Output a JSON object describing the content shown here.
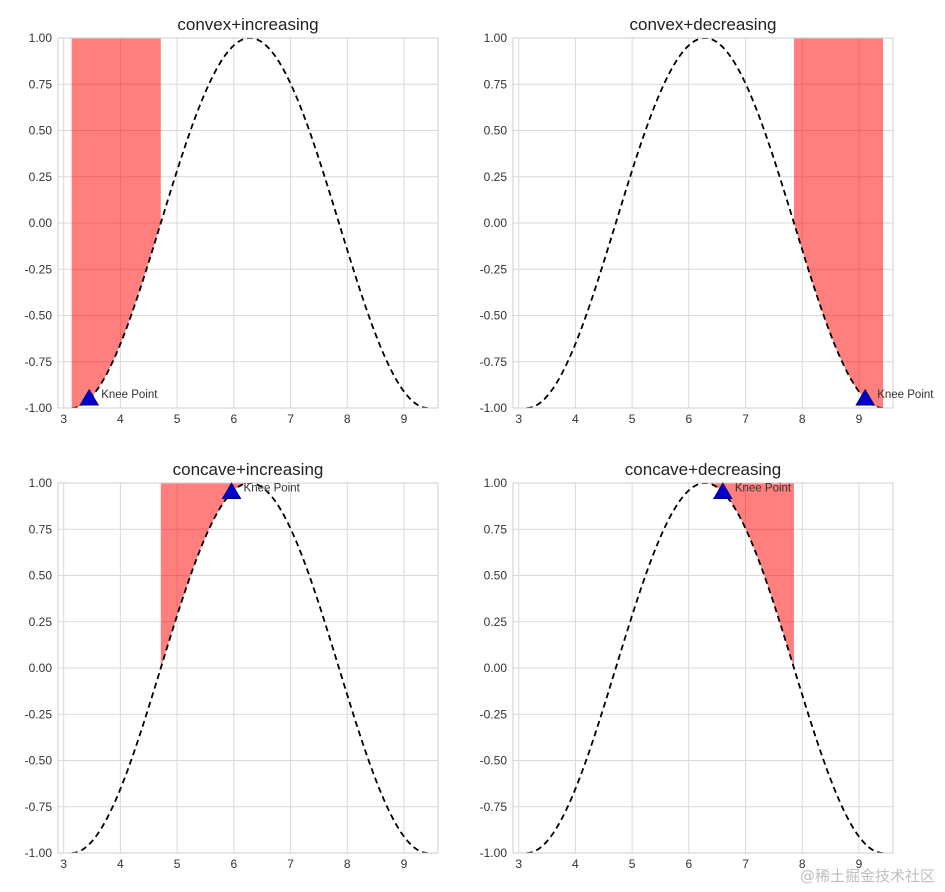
{
  "chart_data": [
    {
      "type": "line",
      "title": "convex+increasing",
      "curve": {
        "function": "cos(x)",
        "x_range": [
          3.1416,
          9.4248
        ],
        "style": "dashed",
        "color": "#000000"
      },
      "xlim": [
        2.9,
        9.6
      ],
      "ylim": [
        -1.0,
        1.0
      ],
      "xticks": [
        3,
        4,
        5,
        6,
        7,
        8,
        9
      ],
      "yticks": [
        1.0,
        0.75,
        0.5,
        0.25,
        0.0,
        -0.25,
        -0.5,
        -0.75,
        -1.0
      ],
      "ytick_labels": [
        "1.00",
        "0.75",
        "0.50",
        "0.25",
        "0.00",
        "-0.25",
        "-0.50",
        "-0.75",
        "-1.00"
      ],
      "shaded_region": {
        "x_range": [
          3.1416,
          4.7124
        ],
        "fill": "above-curve",
        "color": "#ff0000",
        "alpha": 0.5
      },
      "knee_point": {
        "x": 3.45,
        "y": -0.95,
        "label": "Knee Point",
        "label_side": "right"
      },
      "grid": true
    },
    {
      "type": "line",
      "title": "convex+decreasing",
      "curve": {
        "function": "cos(x)",
        "x_range": [
          3.1416,
          9.4248
        ],
        "style": "dashed",
        "color": "#000000"
      },
      "xlim": [
        2.9,
        9.6
      ],
      "ylim": [
        -1.0,
        1.0
      ],
      "xticks": [
        3,
        4,
        5,
        6,
        7,
        8,
        9
      ],
      "yticks": [
        1.0,
        0.75,
        0.5,
        0.25,
        0.0,
        -0.25,
        -0.5,
        -0.75,
        -1.0
      ],
      "ytick_labels": [
        "1.00",
        "0.75",
        "0.50",
        "0.25",
        "0.00",
        "-0.25",
        "-0.50",
        "-0.75",
        "-1.00"
      ],
      "shaded_region": {
        "x_range": [
          7.854,
          9.4248
        ],
        "fill": "above-curve",
        "color": "#ff0000",
        "alpha": 0.5
      },
      "knee_point": {
        "x": 9.11,
        "y": -0.95,
        "label": "Knee Point",
        "label_side": "right"
      },
      "grid": true
    },
    {
      "type": "line",
      "title": "concave+increasing",
      "curve": {
        "function": "cos(x)",
        "x_range": [
          3.1416,
          9.4248
        ],
        "style": "dashed",
        "color": "#000000"
      },
      "xlim": [
        2.9,
        9.6
      ],
      "ylim": [
        -1.0,
        1.0
      ],
      "xticks": [
        3,
        4,
        5,
        6,
        7,
        8,
        9
      ],
      "yticks": [
        1.0,
        0.75,
        0.5,
        0.25,
        0.0,
        -0.25,
        -0.5,
        -0.75,
        -1.0
      ],
      "ytick_labels": [
        "1.00",
        "0.75",
        "0.50",
        "0.25",
        "0.00",
        "-0.25",
        "-0.50",
        "-0.75",
        "-1.00"
      ],
      "shaded_region": {
        "x_range": [
          4.7124,
          6.2832
        ],
        "fill": "above-curve",
        "color": "#ff0000",
        "alpha": 0.5
      },
      "knee_point": {
        "x": 5.96,
        "y": 0.95,
        "label": "Knee Point",
        "label_side": "right"
      },
      "grid": true
    },
    {
      "type": "line",
      "title": "concave+decreasing",
      "curve": {
        "function": "cos(x)",
        "x_range": [
          3.1416,
          9.4248
        ],
        "style": "dashed",
        "color": "#000000"
      },
      "xlim": [
        2.9,
        9.6
      ],
      "ylim": [
        -1.0,
        1.0
      ],
      "xticks": [
        3,
        4,
        5,
        6,
        7,
        8,
        9
      ],
      "yticks": [
        1.0,
        0.75,
        0.5,
        0.25,
        0.0,
        -0.25,
        -0.5,
        -0.75,
        -1.0
      ],
      "ytick_labels": [
        "1.00",
        "0.75",
        "0.50",
        "0.25",
        "0.00",
        "-0.25",
        "-0.50",
        "-0.75",
        "-1.00"
      ],
      "shaded_region": {
        "x_range": [
          6.2832,
          7.854
        ],
        "fill": "above-curve",
        "color": "#ff0000",
        "alpha": 0.5
      },
      "knee_point": {
        "x": 6.6,
        "y": 0.95,
        "label": "Knee Point",
        "label_side": "right"
      },
      "grid": true
    }
  ],
  "watermark": "@稀土掘金技术社区",
  "colors": {
    "grid": "#d9d9d9",
    "shade": "#ff0000",
    "marker_fill": "#0000cc",
    "marker_edge": "#000080"
  }
}
